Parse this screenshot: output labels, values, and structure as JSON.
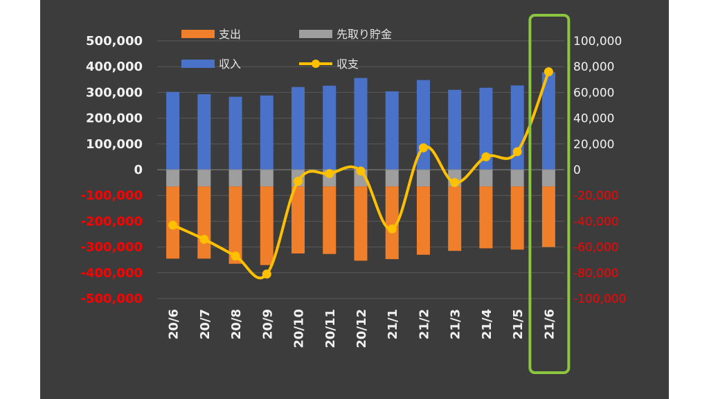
{
  "chart_data": {
    "type": "bar",
    "categories": [
      "20/6",
      "20/7",
      "20/8",
      "20/9",
      "20/10",
      "20/11",
      "20/12",
      "21/1",
      "21/2",
      "21/3",
      "21/4",
      "21/5",
      "21/6"
    ],
    "series": [
      {
        "name": "支出",
        "kind": "bar",
        "axis": "left",
        "color": "#f07f2b",
        "values": [
          -280000,
          -280000,
          -300000,
          -305000,
          -260000,
          -262000,
          -288000,
          -282000,
          -265000,
          -250000,
          -240000,
          -245000,
          -235000
        ]
      },
      {
        "name": "先取り貯金",
        "kind": "bar",
        "axis": "left",
        "color": "#9e9e9e",
        "values": [
          -65000,
          -65000,
          -65000,
          -65000,
          -65000,
          -65000,
          -65000,
          -65000,
          -65000,
          -65000,
          -65000,
          -65000,
          -65000
        ]
      },
      {
        "name": "収入",
        "kind": "bar",
        "axis": "left",
        "color": "#4a72c8",
        "values": [
          302000,
          293000,
          283000,
          288000,
          321000,
          326000,
          356000,
          304000,
          348000,
          310000,
          318000,
          327000,
          378000
        ]
      },
      {
        "name": "収支",
        "kind": "line",
        "axis": "right",
        "color": "#ffc000",
        "values": [
          -43000,
          -54000,
          -67000,
          -81000,
          -9000,
          -3000,
          -1000,
          -46000,
          17000,
          -10000,
          10000,
          14000,
          76000
        ]
      }
    ],
    "left_axis": {
      "min": -500000,
      "max": 500000,
      "step": 100000,
      "tick_labels": [
        "500,000",
        "400,000",
        "300,000",
        "200,000",
        "100,000",
        "0",
        "-100,000",
        "-200,000",
        "-300,000",
        "-400,000",
        "-500,000"
      ]
    },
    "right_axis": {
      "min": -100000,
      "max": 100000,
      "step": 20000,
      "tick_labels": [
        "100,000",
        "80,000",
        "60,000",
        "40,000",
        "20,000",
        "0",
        "-20,000",
        "-40,000",
        "-60,000",
        "-80,000",
        "-100,000"
      ]
    },
    "highlight_category": "21/6",
    "legend_placement": "top",
    "grid": true,
    "colors": {
      "background": "#3c3c3c",
      "gridline": "#5a5a5a",
      "positive_label": "#f2f2f2",
      "negative_label": "#ff0000",
      "highlight": "#8cc63f",
      "category_label": "#f2f2f2"
    }
  }
}
